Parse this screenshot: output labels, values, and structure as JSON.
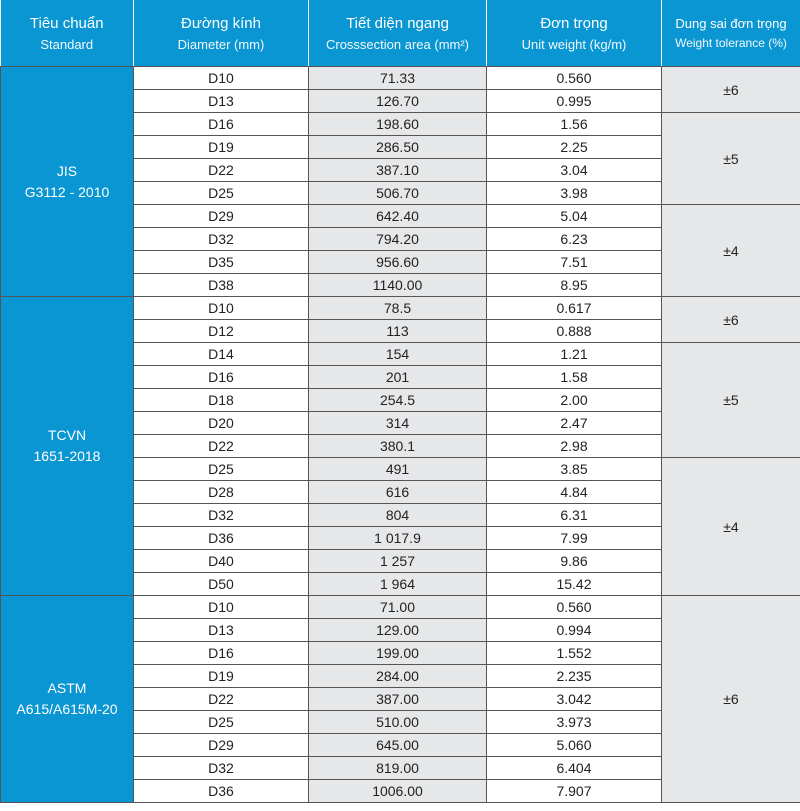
{
  "header": {
    "standard": {
      "vi": "Tiêu chuẩn",
      "en": "Standard"
    },
    "diameter": {
      "vi": "Đường kính",
      "en": "Diameter (mm)"
    },
    "area": {
      "vi": "Tiết diện ngang",
      "en": "Crosssection area (mm²)"
    },
    "weight": {
      "vi": "Đơn trọng",
      "en": "Unit weight (kg/m)"
    },
    "tolerance": {
      "vi": "Dung sai đơn trọng",
      "en": "Weight tolerance (%)"
    }
  },
  "colors": {
    "header_bg": "#0a96d2",
    "grey_col": "#e6e7e9"
  },
  "groups": [
    {
      "standard": [
        "JIS",
        "G3112 - 2010"
      ],
      "rows": [
        [
          "D10",
          "71.33",
          "0.560"
        ],
        [
          "D13",
          "126.70",
          "0.995"
        ],
        [
          "D16",
          "198.60",
          "1.56"
        ],
        [
          "D19",
          "286.50",
          "2.25"
        ],
        [
          "D22",
          "387.10",
          "3.04"
        ],
        [
          "D25",
          "506.70",
          "3.98"
        ],
        [
          "D29",
          "642.40",
          "5.04"
        ],
        [
          "D32",
          "794.20",
          "6.23"
        ],
        [
          "D35",
          "956.60",
          "7.51"
        ],
        [
          "D38",
          "1140.00",
          "8.95"
        ]
      ],
      "tolerances": [
        {
          "value": "±6",
          "span": 2
        },
        {
          "value": "±5",
          "span": 4
        },
        {
          "value": "±4",
          "span": 4
        }
      ]
    },
    {
      "standard": [
        "TCVN",
        "1651-2018"
      ],
      "rows": [
        [
          "D10",
          "78.5",
          "0.617"
        ],
        [
          "D12",
          "113",
          "0.888"
        ],
        [
          "D14",
          "154",
          "1.21"
        ],
        [
          "D16",
          "201",
          "1.58"
        ],
        [
          "D18",
          "254.5",
          "2.00"
        ],
        [
          "D20",
          "314",
          "2.47"
        ],
        [
          "D22",
          "380.1",
          "2.98"
        ],
        [
          "D25",
          "491",
          "3.85"
        ],
        [
          "D28",
          "616",
          "4.84"
        ],
        [
          "D32",
          "804",
          "6.31"
        ],
        [
          "D36",
          "1 017.9",
          "7.99"
        ],
        [
          "D40",
          "1 257",
          "9.86"
        ],
        [
          "D50",
          "1 964",
          "15.42"
        ]
      ],
      "tolerances": [
        {
          "value": "±6",
          "span": 2
        },
        {
          "value": "±5",
          "span": 5
        },
        {
          "value": "±4",
          "span": 6
        }
      ]
    },
    {
      "standard": [
        "ASTM",
        "A615/A615M-20"
      ],
      "rows": [
        [
          "D10",
          "71.00",
          "0.560"
        ],
        [
          "D13",
          "129.00",
          "0.994"
        ],
        [
          "D16",
          "199.00",
          "1.552"
        ],
        [
          "D19",
          "284.00",
          "2.235"
        ],
        [
          "D22",
          "387.00",
          "3.042"
        ],
        [
          "D25",
          "510.00",
          "3.973"
        ],
        [
          "D29",
          "645.00",
          "5.060"
        ],
        [
          "D32",
          "819.00",
          "6.404"
        ],
        [
          "D36",
          "1006.00",
          "7.907"
        ]
      ],
      "tolerances": [
        {
          "value": "±6",
          "span": 9
        }
      ]
    }
  ]
}
